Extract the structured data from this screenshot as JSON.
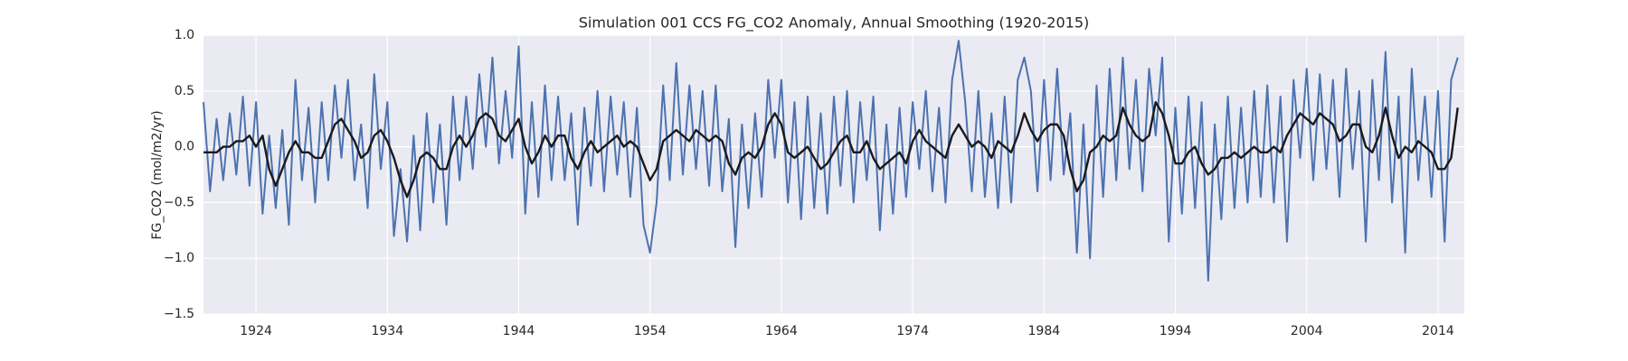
{
  "chart_data": {
    "type": "line",
    "title": "Simulation 001 CCS FG_CO2 Anomaly, Annual Smoothing (1920-2015)",
    "y_label": "FG_CO2 (mol/m2/yr)",
    "xlim": [
      1920,
      2016
    ],
    "xticks": [
      1924,
      1934,
      1944,
      1954,
      1964,
      1974,
      1984,
      1994,
      2004,
      2014
    ],
    "ylim": [
      -1.5,
      1.0
    ],
    "yticks": [
      {
        "value": -1.5,
        "label": "−1.5"
      },
      {
        "value": -1.0,
        "label": "−1.0"
      },
      {
        "value": -0.5,
        "label": "−0.5"
      },
      {
        "value": 0.0,
        "label": "0.0"
      },
      {
        "value": 0.5,
        "label": "0.5"
      },
      {
        "value": 1.0,
        "label": "1.0"
      }
    ],
    "grid": true,
    "x": [
      1920,
      1920.5,
      1921,
      1921.5,
      1922,
      1922.5,
      1923,
      1923.5,
      1924,
      1924.5,
      1925,
      1925.5,
      1926,
      1926.5,
      1927,
      1927.5,
      1928,
      1928.5,
      1929,
      1929.5,
      1930,
      1930.5,
      1931,
      1931.5,
      1932,
      1932.5,
      1933,
      1933.5,
      1934,
      1934.5,
      1935,
      1935.5,
      1936,
      1936.5,
      1937,
      1937.5,
      1938,
      1938.5,
      1939,
      1939.5,
      1940,
      1940.5,
      1941,
      1941.5,
      1942,
      1942.5,
      1943,
      1943.5,
      1944,
      1944.5,
      1945,
      1945.5,
      1946,
      1946.5,
      1947,
      1947.5,
      1948,
      1948.5,
      1949,
      1949.5,
      1950,
      1950.5,
      1951,
      1951.5,
      1952,
      1952.5,
      1953,
      1953.5,
      1954,
      1954.5,
      1955,
      1955.5,
      1956,
      1956.5,
      1957,
      1957.5,
      1958,
      1958.5,
      1959,
      1959.5,
      1960,
      1960.5,
      1961,
      1961.5,
      1962,
      1962.5,
      1963,
      1963.5,
      1964,
      1964.5,
      1965,
      1965.5,
      1966,
      1966.5,
      1967,
      1967.5,
      1968,
      1968.5,
      1969,
      1969.5,
      1970,
      1970.5,
      1971,
      1971.5,
      1972,
      1972.5,
      1973,
      1973.5,
      1974,
      1974.5,
      1975,
      1975.5,
      1976,
      1976.5,
      1977,
      1977.5,
      1978,
      1978.5,
      1979,
      1979.5,
      1980,
      1980.5,
      1981,
      1981.5,
      1982,
      1982.5,
      1983,
      1983.5,
      1984,
      1984.5,
      1985,
      1985.5,
      1986,
      1986.5,
      1987,
      1987.5,
      1988,
      1988.5,
      1989,
      1989.5,
      1990,
      1990.5,
      1991,
      1991.5,
      1992,
      1992.5,
      1993,
      1993.5,
      1994,
      1994.5,
      1995,
      1995.5,
      1996,
      1996.5,
      1997,
      1997.5,
      1998,
      1998.5,
      1999,
      1999.5,
      2000,
      2000.5,
      2001,
      2001.5,
      2002,
      2002.5,
      2003,
      2003.5,
      2004,
      2004.5,
      2005,
      2005.5,
      2006,
      2006.5,
      2007,
      2007.5,
      2008,
      2008.5,
      2009,
      2009.5,
      2010,
      2010.5,
      2011,
      2011.5,
      2012,
      2012.5,
      2013,
      2013.5,
      2014,
      2014.5,
      2015,
      2015.5
    ],
    "series": [
      {
        "color": "#4c72b0",
        "width": 2,
        "values": [
          0.4,
          -0.4,
          0.25,
          -0.3,
          0.3,
          -0.25,
          0.45,
          -0.35,
          0.4,
          -0.6,
          0.1,
          -0.55,
          0.15,
          -0.7,
          0.6,
          -0.3,
          0.35,
          -0.5,
          0.4,
          -0.3,
          0.55,
          -0.1,
          0.6,
          -0.3,
          0.2,
          -0.55,
          0.65,
          -0.2,
          0.4,
          -0.8,
          -0.2,
          -0.85,
          0.1,
          -0.75,
          0.3,
          -0.5,
          0.2,
          -0.7,
          0.45,
          -0.3,
          0.45,
          -0.2,
          0.65,
          0.0,
          0.8,
          -0.15,
          0.5,
          -0.1,
          0.9,
          -0.6,
          0.4,
          -0.45,
          0.55,
          -0.3,
          0.45,
          -0.3,
          0.3,
          -0.7,
          0.35,
          -0.35,
          0.5,
          -0.4,
          0.45,
          -0.25,
          0.4,
          -0.45,
          0.35,
          -0.7,
          -0.95,
          -0.5,
          0.55,
          -0.3,
          0.75,
          -0.25,
          0.55,
          -0.2,
          0.5,
          -0.35,
          0.55,
          -0.4,
          0.25,
          -0.9,
          0.2,
          -0.55,
          0.3,
          -0.45,
          0.6,
          -0.1,
          0.6,
          -0.5,
          0.4,
          -0.65,
          0.45,
          -0.55,
          0.3,
          -0.6,
          0.45,
          -0.35,
          0.5,
          -0.5,
          0.4,
          -0.3,
          0.45,
          -0.75,
          0.2,
          -0.6,
          0.35,
          -0.45,
          0.4,
          -0.2,
          0.5,
          -0.4,
          0.35,
          -0.5,
          0.6,
          0.95,
          0.4,
          -0.4,
          0.5,
          -0.45,
          0.3,
          -0.55,
          0.45,
          -0.5,
          0.6,
          0.8,
          0.5,
          -0.4,
          0.6,
          -0.3,
          0.7,
          -0.25,
          0.3,
          -0.95,
          0.2,
          -1.0,
          0.55,
          -0.45,
          0.7,
          -0.3,
          0.8,
          -0.2,
          0.6,
          -0.4,
          0.7,
          0.1,
          0.8,
          -0.85,
          0.35,
          -0.6,
          0.45,
          -0.55,
          0.4,
          -1.2,
          0.2,
          -0.65,
          0.45,
          -0.55,
          0.35,
          -0.5,
          0.5,
          -0.45,
          0.55,
          -0.5,
          0.45,
          -0.85,
          0.6,
          -0.1,
          0.7,
          -0.3,
          0.65,
          -0.2,
          0.6,
          -0.45,
          0.7,
          -0.2,
          0.5,
          -0.85,
          0.6,
          -0.3,
          0.85,
          -0.5,
          0.45,
          -0.95,
          0.7,
          -0.3,
          0.45,
          -0.45,
          0.5,
          -0.85,
          0.6,
          0.8
        ]
      },
      {
        "color": "#1a1a1a",
        "width": 2.4,
        "values": [
          -0.05,
          -0.05,
          -0.05,
          0.0,
          0.0,
          0.05,
          0.05,
          0.1,
          0.0,
          0.1,
          -0.2,
          -0.35,
          -0.2,
          -0.05,
          0.05,
          -0.05,
          -0.05,
          -0.1,
          -0.1,
          0.05,
          0.2,
          0.25,
          0.15,
          0.05,
          -0.1,
          -0.05,
          0.1,
          0.15,
          0.05,
          -0.1,
          -0.3,
          -0.45,
          -0.3,
          -0.1,
          -0.05,
          -0.1,
          -0.2,
          -0.2,
          0.0,
          0.1,
          0.0,
          0.1,
          0.25,
          0.3,
          0.25,
          0.1,
          0.05,
          0.15,
          0.25,
          0.0,
          -0.15,
          -0.05,
          0.1,
          0.0,
          0.1,
          0.1,
          -0.1,
          -0.2,
          -0.05,
          0.05,
          -0.05,
          0.0,
          0.05,
          0.1,
          0.0,
          0.05,
          0.0,
          -0.15,
          -0.3,
          -0.2,
          0.05,
          0.1,
          0.15,
          0.1,
          0.05,
          0.15,
          0.1,
          0.05,
          0.1,
          0.05,
          -0.15,
          -0.25,
          -0.1,
          -0.05,
          -0.1,
          0.0,
          0.2,
          0.3,
          0.2,
          -0.05,
          -0.1,
          -0.05,
          0.0,
          -0.1,
          -0.2,
          -0.15,
          -0.05,
          0.05,
          0.1,
          -0.05,
          -0.05,
          0.05,
          -0.1,
          -0.2,
          -0.15,
          -0.1,
          -0.05,
          -0.15,
          0.05,
          0.15,
          0.05,
          0.0,
          -0.05,
          -0.1,
          0.1,
          0.2,
          0.1,
          0.0,
          0.05,
          0.0,
          -0.1,
          0.05,
          0.0,
          -0.05,
          0.1,
          0.3,
          0.15,
          0.05,
          0.15,
          0.2,
          0.2,
          0.1,
          -0.2,
          -0.4,
          -0.3,
          -0.05,
          0.0,
          0.1,
          0.05,
          0.1,
          0.35,
          0.2,
          0.1,
          0.05,
          0.1,
          0.4,
          0.3,
          0.1,
          -0.15,
          -0.15,
          -0.05,
          0.0,
          -0.15,
          -0.25,
          -0.2,
          -0.1,
          -0.1,
          -0.05,
          -0.1,
          -0.05,
          0.0,
          -0.05,
          -0.05,
          0.0,
          -0.05,
          0.1,
          0.2,
          0.3,
          0.25,
          0.2,
          0.3,
          0.25,
          0.2,
          0.05,
          0.1,
          0.2,
          0.2,
          0.0,
          -0.05,
          0.1,
          0.35,
          0.1,
          -0.1,
          0.0,
          -0.05,
          0.05,
          0.0,
          -0.05,
          -0.2,
          -0.2,
          -0.1,
          0.35
        ]
      }
    ]
  }
}
